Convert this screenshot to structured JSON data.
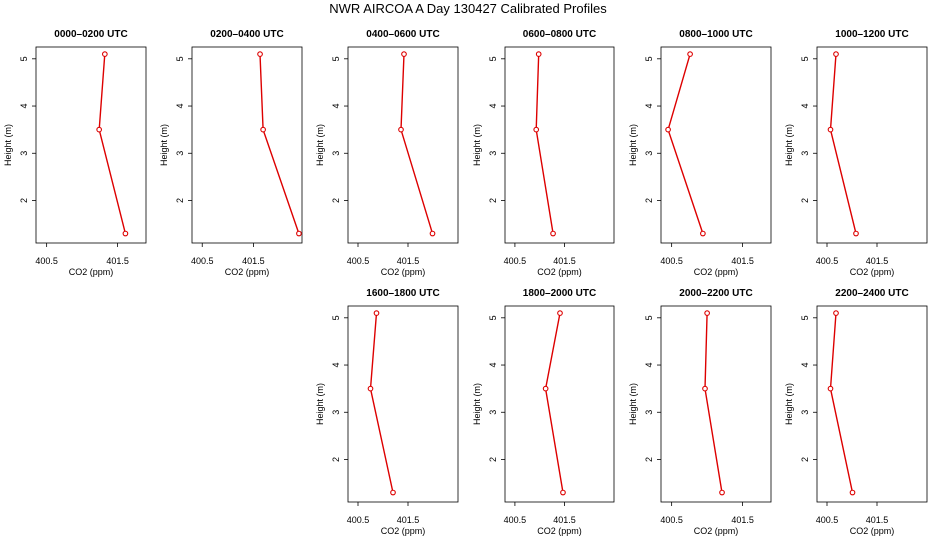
{
  "title": "NWR AIRCOA A  Day 130427  Calibrated Profiles",
  "colors": {
    "line": "#dd0000",
    "axis": "#000000"
  },
  "chart_data": [
    {
      "type": "line",
      "title": "0000–0200 UTC",
      "xlabel": "CO2 (ppm)",
      "ylabel": "Height (m)",
      "xlim": [
        400.35,
        401.9
      ],
      "ylim": [
        1.1,
        5.25
      ],
      "xticks": [
        400.5,
        401.5
      ],
      "xtick_labels": [
        "400.5",
        "401.5"
      ],
      "yticks": [
        2,
        3,
        4,
        5
      ],
      "ytick_labels": [
        "2",
        "3",
        "4",
        "5"
      ],
      "series": [
        {
          "x": [
            401.61,
            401.24,
            401.32
          ],
          "y": [
            1.3,
            3.5,
            5.1
          ]
        }
      ]
    },
    {
      "type": "line",
      "title": "0200–0400 UTC",
      "xlabel": "CO2 (ppm)",
      "ylabel": "Height (m)",
      "xlim": [
        400.3,
        402.45
      ],
      "ylim": [
        1.1,
        5.25
      ],
      "xticks": [
        400.5,
        401.5
      ],
      "xtick_labels": [
        "400.5",
        "401.5"
      ],
      "yticks": [
        2,
        3,
        4,
        5
      ],
      "ytick_labels": [
        "2",
        "3",
        "4",
        "5"
      ],
      "series": [
        {
          "x": [
            402.39,
            401.69,
            401.63
          ],
          "y": [
            1.3,
            3.5,
            5.1
          ]
        }
      ]
    },
    {
      "type": "line",
      "title": "0400–0600 UTC",
      "xlabel": "CO2 (ppm)",
      "ylabel": "Height (m)",
      "xlim": [
        400.3,
        402.5
      ],
      "ylim": [
        1.1,
        5.25
      ],
      "xticks": [
        400.5,
        401.5
      ],
      "xtick_labels": [
        "400.5",
        "401.5"
      ],
      "yticks": [
        2,
        3,
        4,
        5
      ],
      "ytick_labels": [
        "2",
        "3",
        "4",
        "5"
      ],
      "series": [
        {
          "x": [
            401.99,
            401.36,
            401.42
          ],
          "y": [
            1.3,
            3.5,
            5.1
          ]
        }
      ]
    },
    {
      "type": "line",
      "title": "0600–0800 UTC",
      "xlabel": "CO2 (ppm)",
      "ylabel": "Height (m)",
      "xlim": [
        400.3,
        402.5
      ],
      "ylim": [
        1.1,
        5.25
      ],
      "xticks": [
        400.5,
        401.5
      ],
      "xtick_labels": [
        "400.5",
        "401.5"
      ],
      "yticks": [
        2,
        3,
        4,
        5
      ],
      "ytick_labels": [
        "2",
        "3",
        "4",
        "5"
      ],
      "series": [
        {
          "x": [
            401.27,
            400.93,
            400.98
          ],
          "y": [
            1.3,
            3.5,
            5.1
          ]
        }
      ]
    },
    {
      "type": "line",
      "title": "0800–1000 UTC",
      "xlabel": "CO2 (ppm)",
      "ylabel": "Height (m)",
      "xlim": [
        400.35,
        401.9
      ],
      "ylim": [
        1.1,
        5.25
      ],
      "xticks": [
        400.5,
        401.5
      ],
      "xtick_labels": [
        "400.5",
        "401.5"
      ],
      "yticks": [
        2,
        3,
        4,
        5
      ],
      "ytick_labels": [
        "2",
        "3",
        "4",
        "5"
      ],
      "series": [
        {
          "x": [
            400.94,
            400.45,
            400.76
          ],
          "y": [
            1.3,
            3.5,
            5.1
          ]
        }
      ]
    },
    {
      "type": "line",
      "title": "1000–1200 UTC",
      "xlabel": "CO2 (ppm)",
      "ylabel": "Height (m)",
      "xlim": [
        400.3,
        402.5
      ],
      "ylim": [
        1.1,
        5.25
      ],
      "xticks": [
        400.5,
        401.5
      ],
      "xtick_labels": [
        "400.5",
        "401.5"
      ],
      "yticks": [
        2,
        3,
        4,
        5
      ],
      "ytick_labels": [
        "2",
        "3",
        "4",
        "5"
      ],
      "series": [
        {
          "x": [
            401.08,
            400.57,
            400.68
          ],
          "y": [
            1.3,
            3.5,
            5.1
          ]
        }
      ]
    },
    {
      "type": "line",
      "title": "1600–1800 UTC",
      "xlabel": "CO2 (ppm)",
      "ylabel": "Height (m)",
      "xlim": [
        400.3,
        402.5
      ],
      "ylim": [
        1.1,
        5.25
      ],
      "xticks": [
        400.5,
        401.5
      ],
      "xtick_labels": [
        "400.5",
        "401.5"
      ],
      "yticks": [
        2,
        3,
        4,
        5
      ],
      "ytick_labels": [
        "2",
        "3",
        "4",
        "5"
      ],
      "series": [
        {
          "x": [
            401.2,
            400.75,
            400.87
          ],
          "y": [
            1.3,
            3.5,
            5.1
          ]
        }
      ]
    },
    {
      "type": "line",
      "title": "1800–2000 UTC",
      "xlabel": "CO2 (ppm)",
      "ylabel": "Height (m)",
      "xlim": [
        400.3,
        402.5
      ],
      "ylim": [
        1.1,
        5.25
      ],
      "xticks": [
        400.5,
        401.5
      ],
      "xtick_labels": [
        "400.5",
        "401.5"
      ],
      "yticks": [
        2,
        3,
        4,
        5
      ],
      "ytick_labels": [
        "2",
        "3",
        "4",
        "5"
      ],
      "series": [
        {
          "x": [
            401.47,
            401.12,
            401.41
          ],
          "y": [
            1.3,
            3.5,
            5.1
          ]
        }
      ]
    },
    {
      "type": "line",
      "title": "2000–2200 UTC",
      "xlabel": "CO2 (ppm)",
      "ylabel": "Height (m)",
      "xlim": [
        400.35,
        401.9
      ],
      "ylim": [
        1.1,
        5.25
      ],
      "xticks": [
        400.5,
        401.5
      ],
      "xtick_labels": [
        "400.5",
        "401.5"
      ],
      "yticks": [
        2,
        3,
        4,
        5
      ],
      "ytick_labels": [
        "2",
        "3",
        "4",
        "5"
      ],
      "series": [
        {
          "x": [
            401.21,
            400.97,
            401.0
          ],
          "y": [
            1.3,
            3.5,
            5.1
          ]
        }
      ]
    },
    {
      "type": "line",
      "title": "2200–2400 UTC",
      "xlabel": "CO2 (ppm)",
      "ylabel": "Height (m)",
      "xlim": [
        400.3,
        402.5
      ],
      "ylim": [
        1.1,
        5.25
      ],
      "xticks": [
        400.5,
        401.5
      ],
      "xtick_labels": [
        "400.5",
        "401.5"
      ],
      "yticks": [
        2,
        3,
        4,
        5
      ],
      "ytick_labels": [
        "2",
        "3",
        "4",
        "5"
      ],
      "series": [
        {
          "x": [
            401.01,
            400.57,
            400.68
          ],
          "y": [
            1.3,
            3.5,
            5.1
          ]
        }
      ]
    }
  ]
}
